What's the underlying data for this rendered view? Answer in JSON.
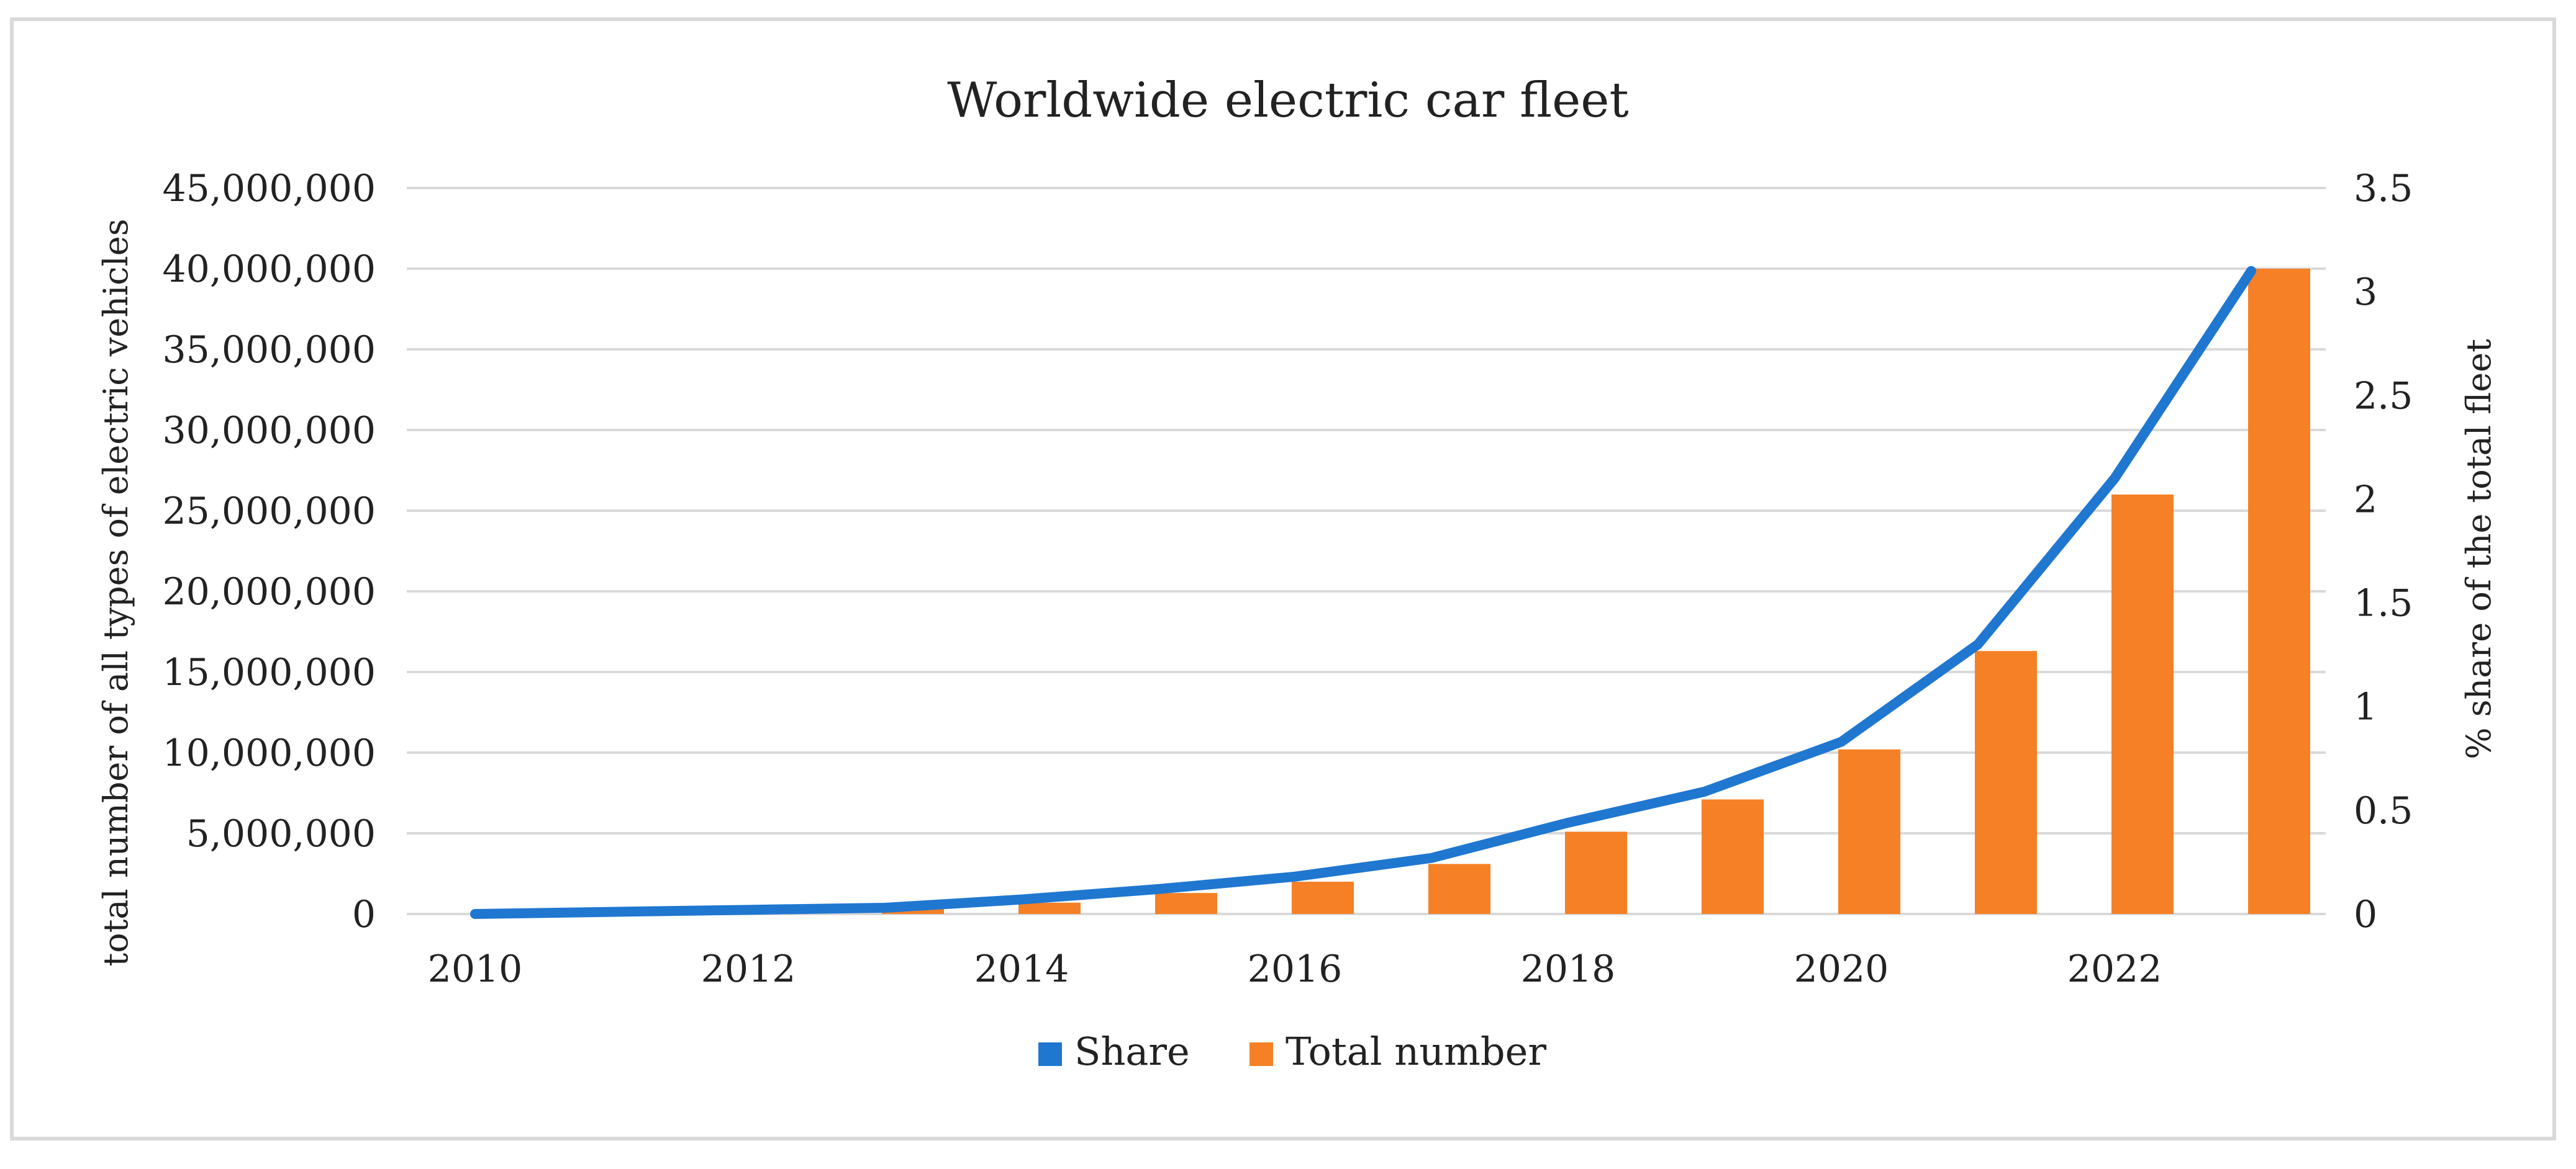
{
  "chart_data": {
    "type": "bar",
    "title": "Worldwide  electric car fleet",
    "x": [
      2010,
      2011,
      2012,
      2013,
      2014,
      2015,
      2016,
      2017,
      2018,
      2019,
      2020,
      2021,
      2022,
      2023
    ],
    "x_tick_labels": [
      "2010",
      "2012",
      "2014",
      "2016",
      "2018",
      "2020",
      "2022"
    ],
    "ylabel": "total number of all types of electric vehicles",
    "y2label": "% share of the total fleet",
    "ylim": [
      0,
      45000000
    ],
    "y2lim": [
      0,
      3.5
    ],
    "y_tick_labels": [
      "0",
      "5,000,000",
      "10,000,000",
      "15,000,000",
      "20,000,000",
      "25,000,000",
      "30,000,000",
      "35,000,000",
      "40,000,000",
      "45,000,000"
    ],
    "y2_tick_labels": [
      "0",
      "0.5",
      "1",
      "1.5",
      "2",
      "2.5",
      "3",
      "3.5"
    ],
    "grid": true,
    "legend_position": "bottom",
    "series": [
      {
        "name": "Share",
        "type": "line",
        "axis": "right",
        "color": "#1f77d0",
        "values": [
          0.0,
          0.01,
          0.02,
          0.03,
          0.07,
          0.12,
          0.18,
          0.27,
          0.44,
          0.59,
          0.83,
          1.3,
          2.1,
          3.1
        ]
      },
      {
        "name": "Total number",
        "type": "bar",
        "axis": "left",
        "color": "#f58025",
        "values": [
          20000,
          60000,
          150000,
          320000,
          700000,
          1300000,
          2000000,
          3100000,
          5100000,
          7100000,
          10200000,
          16300000,
          26000000,
          40000000
        ]
      }
    ]
  }
}
